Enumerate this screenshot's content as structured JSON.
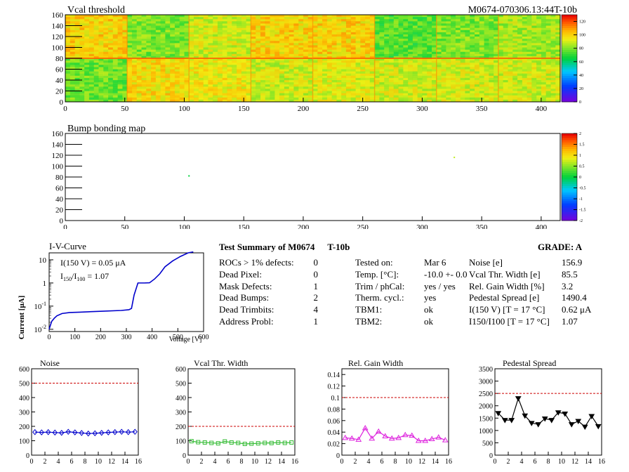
{
  "map1": {
    "title": "Vcal threshold",
    "module_id": "M0674-070306.13:44T-10b",
    "x_ticks": [
      "0",
      "50",
      "100",
      "150",
      "200",
      "250",
      "300",
      "350",
      "400"
    ],
    "y_ticks": [
      "0",
      "20",
      "40",
      "60",
      "80",
      "100",
      "120",
      "140",
      "160"
    ],
    "palette_ticks": [
      "0",
      "20",
      "40",
      "60",
      "80",
      "100",
      "120"
    ]
  },
  "map2": {
    "title": "Bump bonding map",
    "x_ticks": [
      "0",
      "50",
      "100",
      "150",
      "200",
      "250",
      "300",
      "350",
      "400"
    ],
    "y_ticks": [
      "0",
      "20",
      "40",
      "60",
      "80",
      "100",
      "120",
      "140",
      "160"
    ],
    "palette_ticks": [
      "-2",
      "-1.5",
      "-1",
      "-0.5",
      "0",
      "0.5",
      "1",
      "1.5",
      "2"
    ]
  },
  "iv": {
    "title": "I-V-Curve",
    "ylabel": "Current [μA]",
    "xlabel": "Voltage [V]",
    "x_ticks": [
      "0",
      "100",
      "200",
      "300",
      "400",
      "500",
      "600"
    ],
    "y_ticks": [
      {
        "base": "10",
        "exp": "-2"
      },
      {
        "base": "10",
        "exp": "-1"
      },
      {
        "base": "1",
        "exp": ""
      },
      {
        "base": "10",
        "exp": ""
      }
    ],
    "annot1": "I(150 V) = 0.05 μA",
    "annot2_a": "I",
    "annot2_sub1": "150",
    "annot2_b": "/I",
    "annot2_sub2": "100",
    "annot2_c": " =  1.07"
  },
  "summary": {
    "title": "Test Summary of M0674",
    "title2": "T-10b",
    "grade_label": "GRADE:  A",
    "left_rows": [
      {
        "label": "ROCs > 1% defects:",
        "value": "0"
      },
      {
        "label": "Dead Pixel:",
        "value": "0"
      },
      {
        "label": "Mask Defects:",
        "value": "1"
      },
      {
        "label": "Dead Bumps:",
        "value": "2"
      },
      {
        "label": "Dead Trimbits:",
        "value": "4"
      },
      {
        "label": "Address Probl:",
        "value": "1"
      }
    ],
    "mid_rows": [
      {
        "label": "Tested on:",
        "value": "Mar 6"
      },
      {
        "label": "Temp. [°C]:",
        "value": "-10.0 +- 0.0"
      },
      {
        "label": "Trim / phCal:",
        "value": "yes / yes"
      },
      {
        "label": "Therm. cycl.:",
        "value": "yes"
      },
      {
        "label": "TBM1:",
        "value": "ok"
      },
      {
        "label": "TBM2:",
        "value": "ok"
      }
    ],
    "right_rows": [
      {
        "label": "Noise [e]",
        "value": "156.9"
      },
      {
        "label": "Vcal Thr. Width [e]",
        "value": "85.5"
      },
      {
        "label": "Rel. Gain Width [%]",
        "value": "3.2"
      },
      {
        "label": "Pedestal Spread [e]",
        "value": "1490.4"
      },
      {
        "label": "I(150 V) [T = 17 °C]",
        "value": "0.62 μA"
      },
      {
        "label": "I150/I100  [T = 17 °C]",
        "value": "1.07"
      }
    ]
  },
  "chart_data": [
    {
      "type": "heatmap",
      "title": "Vcal threshold",
      "xlim": [
        0,
        416
      ],
      "ylim": [
        0,
        160
      ],
      "zlim": [
        0,
        130
      ],
      "layout": "2 rows x 8 ROCs (52x80 pixels each)",
      "roc_mean_levels": {
        "top_row": [
          100,
          80,
          90,
          100,
          100,
          75,
          80,
          85
        ],
        "bottom_row": [
          78,
          98,
          95,
          90,
          92,
          90,
          90,
          90
        ]
      }
    },
    {
      "type": "heatmap",
      "title": "Bump bonding map",
      "xlim": [
        0,
        416
      ],
      "ylim": [
        0,
        160
      ],
      "zlim": [
        -2,
        2
      ],
      "points": [
        {
          "x": 104,
          "y": 82,
          "value": 0.0
        },
        {
          "x": 327,
          "y": 116,
          "value": 0.7
        }
      ]
    },
    {
      "type": "line",
      "title": "I-V-Curve",
      "xlabel": "Voltage [V]",
      "ylabel": "Current [μA]",
      "y_scale": "log",
      "xlim": [
        0,
        600
      ],
      "ylim": [
        0.008,
        20
      ],
      "x": [
        0,
        5,
        10,
        20,
        30,
        50,
        80,
        120,
        200,
        280,
        310,
        320,
        330,
        345,
        355,
        370,
        390,
        410,
        430,
        450,
        480,
        510,
        540,
        560
      ],
      "y": [
        0.01,
        0.015,
        0.022,
        0.03,
        0.038,
        0.048,
        0.053,
        0.055,
        0.06,
        0.065,
        0.07,
        0.08,
        0.3,
        1.0,
        1.0,
        1.0,
        1.02,
        1.5,
        2.5,
        5.0,
        9.0,
        14.0,
        20.0,
        22.0
      ]
    },
    {
      "type": "line",
      "title": "Noise",
      "xlim": [
        0,
        16
      ],
      "ylim": [
        0,
        600
      ],
      "x_ticks": [
        "0",
        "2",
        "4",
        "6",
        "8",
        "10",
        "12",
        "14",
        "16"
      ],
      "y_ticks": [
        "0",
        "100",
        "200",
        "300",
        "400",
        "500",
        "600"
      ],
      "reference": 500,
      "color": "#0000cc",
      "marker": "diamond",
      "x": [
        0.5,
        1.5,
        2.5,
        3.5,
        4.5,
        5.5,
        6.5,
        7.5,
        8.5,
        9.5,
        10.5,
        11.5,
        12.5,
        13.5,
        14.5,
        15.5
      ],
      "values": [
        160,
        158,
        160,
        157,
        155,
        162,
        158,
        154,
        150,
        152,
        155,
        158,
        160,
        162,
        160,
        162
      ]
    },
    {
      "type": "line",
      "title": "Vcal Thr. Width",
      "xlim": [
        0,
        16
      ],
      "ylim": [
        0,
        600
      ],
      "x_ticks": [
        "0",
        "2",
        "4",
        "6",
        "8",
        "10",
        "12",
        "14",
        "16"
      ],
      "y_ticks": [
        "0",
        "100",
        "200",
        "300",
        "400",
        "500",
        "600"
      ],
      "reference": 200,
      "color": "#33bb33",
      "marker": "square",
      "x": [
        0.5,
        1.5,
        2.5,
        3.5,
        4.5,
        5.5,
        6.5,
        7.5,
        8.5,
        9.5,
        10.5,
        11.5,
        12.5,
        13.5,
        14.5,
        15.5
      ],
      "values": [
        97,
        90,
        88,
        85,
        82,
        95,
        88,
        85,
        78,
        80,
        82,
        85,
        84,
        88,
        85,
        88
      ]
    },
    {
      "type": "line",
      "title": "Rel. Gain Width",
      "xlim": [
        0,
        16
      ],
      "ylim": [
        0,
        0.15
      ],
      "x_ticks": [
        "0",
        "2",
        "4",
        "6",
        "8",
        "10",
        "12",
        "14",
        "16"
      ],
      "y_ticks": [
        "0",
        "0.02",
        "0.04",
        "0.06",
        "0.08",
        "0.1",
        "0.12",
        "0.14"
      ],
      "reference": 0.1,
      "color": "#dd22dd",
      "marker": "triangle",
      "x": [
        0.5,
        1.5,
        2.5,
        3.5,
        4.5,
        5.5,
        6.5,
        7.5,
        8.5,
        9.5,
        10.5,
        11.5,
        12.5,
        13.5,
        14.5,
        15.5
      ],
      "values": [
        0.03,
        0.029,
        0.027,
        0.047,
        0.029,
        0.041,
        0.033,
        0.029,
        0.03,
        0.035,
        0.034,
        0.025,
        0.025,
        0.028,
        0.031,
        0.026
      ]
    },
    {
      "type": "line",
      "title": "Pedestal Spread",
      "xlim": [
        0,
        16
      ],
      "ylim": [
        0,
        3500
      ],
      "x_ticks": [
        "0",
        "2",
        "4",
        "6",
        "8",
        "10",
        "12",
        "14",
        "16"
      ],
      "y_ticks": [
        "0",
        "500",
        "1000",
        "1500",
        "2000",
        "2500",
        "3000",
        "3500"
      ],
      "reference": 2500,
      "color": "#000000",
      "marker": "triangle-down",
      "x": [
        0.5,
        1.5,
        2.5,
        3.5,
        4.5,
        5.5,
        6.5,
        7.5,
        8.5,
        9.5,
        10.5,
        11.5,
        12.5,
        13.5,
        14.5,
        15.5
      ],
      "values": [
        1700,
        1420,
        1420,
        2300,
        1600,
        1300,
        1250,
        1480,
        1420,
        1730,
        1680,
        1250,
        1380,
        1150,
        1580,
        1170
      ]
    }
  ]
}
